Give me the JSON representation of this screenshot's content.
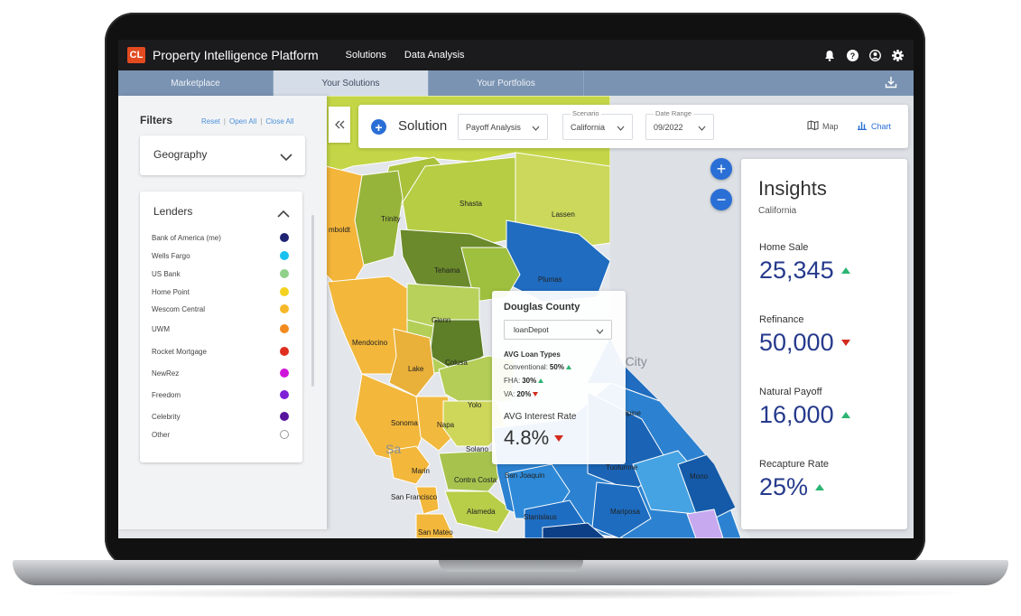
{
  "topbar": {
    "logo": "CL",
    "title": "Property Intelligence Platform",
    "nav": [
      "Solutions",
      "Data Analysis"
    ],
    "icons": [
      "bell-icon",
      "help-icon",
      "user-icon",
      "gear-icon"
    ]
  },
  "tabs": [
    "Marketplace",
    "Your Solutions",
    "Your Portfolios"
  ],
  "active_tab": "Your Solutions",
  "filters": {
    "title": "Filters",
    "reset": "Reset",
    "open_all": "Open All",
    "close_all": "Close All",
    "sep": "|",
    "geography": "Geography",
    "lenders_title": "Lenders",
    "lenders": [
      {
        "name": "Bank of America (me)",
        "color": "#1e2472"
      },
      {
        "name": "Wells Fargo",
        "color": "#18c1f0"
      },
      {
        "name": "US Bank",
        "color": "#8fd18a"
      },
      {
        "name": "Home Point",
        "color": "#f5d21f"
      },
      {
        "name": "Wescom Central",
        "color": "#f6b82a"
      },
      {
        "name": "UWM",
        "color": "#f38a1d"
      },
      {
        "name": "Rocket Mortgage",
        "color": "#e02e1e"
      },
      {
        "name": "NewRez",
        "color": "#cf14d9"
      },
      {
        "name": "Freedom",
        "color": "#7f1fd6"
      },
      {
        "name": "Celebrity",
        "color": "#56139e"
      },
      {
        "name": "Other",
        "color": "#ffffff"
      }
    ]
  },
  "solution_bar": {
    "label": "Solution",
    "solution_value": "Payoff Analysis",
    "scenario_caption": "Scenario",
    "scenario_value": "California",
    "date_caption": "Date Range",
    "date_value": "09/2022",
    "map_button": "Map",
    "chart_button": "Chart"
  },
  "map_labels": {
    "humboldt": "mboldt",
    "trinity": "Trinity",
    "shasta": "Shasta",
    "lassen": "Lassen",
    "tehama": "Tehama",
    "plumas": "Plumas",
    "glenn": "Glenn",
    "mendocino": "Mendocino",
    "lake": "Lake",
    "colusa": "Colusa",
    "yolo": "Yolo",
    "sonoma": "Sonoma",
    "napa": "Napa",
    "solano": "Solano",
    "marin": "Marin",
    "contra_costa": "Contra Costa",
    "san_joaquin": "San Joaquin",
    "san_francisco": "San Francisco",
    "alameda": "Alameda",
    "stanislaus": "Stanislaus",
    "san_mateo": "San Mateo",
    "tuolumne": "Tuolumne",
    "mariposa": "Mariposa",
    "mono": "Mono",
    "alpine": "lpine",
    "city_text": "n City",
    "sa_text": "Sa"
  },
  "popup": {
    "county": "Douglas County",
    "lender": "loanDepot",
    "loan_types_title": "AVG Loan Types",
    "loan_types": [
      {
        "label": "Conventional:",
        "value": "50%",
        "trend": "up"
      },
      {
        "label": "FHA:",
        "value": "30%",
        "trend": "up"
      },
      {
        "label": "VA:",
        "value": "20%",
        "trend": "down"
      }
    ],
    "rate_label": "AVG Interest Rate",
    "rate_value": "4.8%",
    "rate_trend": "down"
  },
  "insights": {
    "title": "Insights",
    "region": "California",
    "metrics": [
      {
        "label": "Home Sale",
        "value": "25,345",
        "trend": "up"
      },
      {
        "label": "Refinance",
        "value": "50,000",
        "trend": "down"
      },
      {
        "label": "Natural Payoff",
        "value": "16,000",
        "trend": "up"
      },
      {
        "label": "Recapture Rate",
        "value": "25%",
        "trend": "up"
      }
    ]
  },
  "colors": {
    "accent_blue": "#2a6fd6",
    "value_navy": "#263a8c",
    "trend_up": "#2bb573",
    "trend_down": "#d32b1e"
  }
}
